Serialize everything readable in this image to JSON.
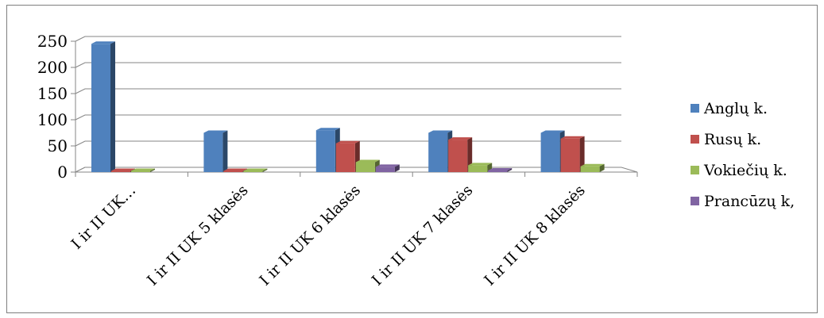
{
  "chart_data": {
    "type": "bar",
    "title": "",
    "xlabel": "",
    "ylabel": "",
    "ylim": [
      0,
      250
    ],
    "yticks": [
      0,
      50,
      100,
      150,
      200,
      250
    ],
    "grid": true,
    "legend_position": "right",
    "categories": [
      "I ir II UK…",
      "I ir II UK 5 klasės",
      "I ir II UK 6 klasės",
      "I ir II UK 7 klasės",
      "I ir II UK 8 klasės"
    ],
    "series": [
      {
        "name": "Anglų k.",
        "color": "#4f81bd",
        "values": [
          245,
          75,
          80,
          75,
          75
        ]
      },
      {
        "name": "Rusų k.",
        "color": "#c0504d",
        "values": [
          2,
          2,
          55,
          62,
          64
        ]
      },
      {
        "name": "Vokiečių k.",
        "color": "#9bbb59",
        "values": [
          2,
          2,
          19,
          13,
          11
        ]
      },
      {
        "name": "Prancūzų k,",
        "color": "#8064a2",
        "values": [
          0,
          0,
          10,
          3,
          0
        ]
      }
    ]
  }
}
